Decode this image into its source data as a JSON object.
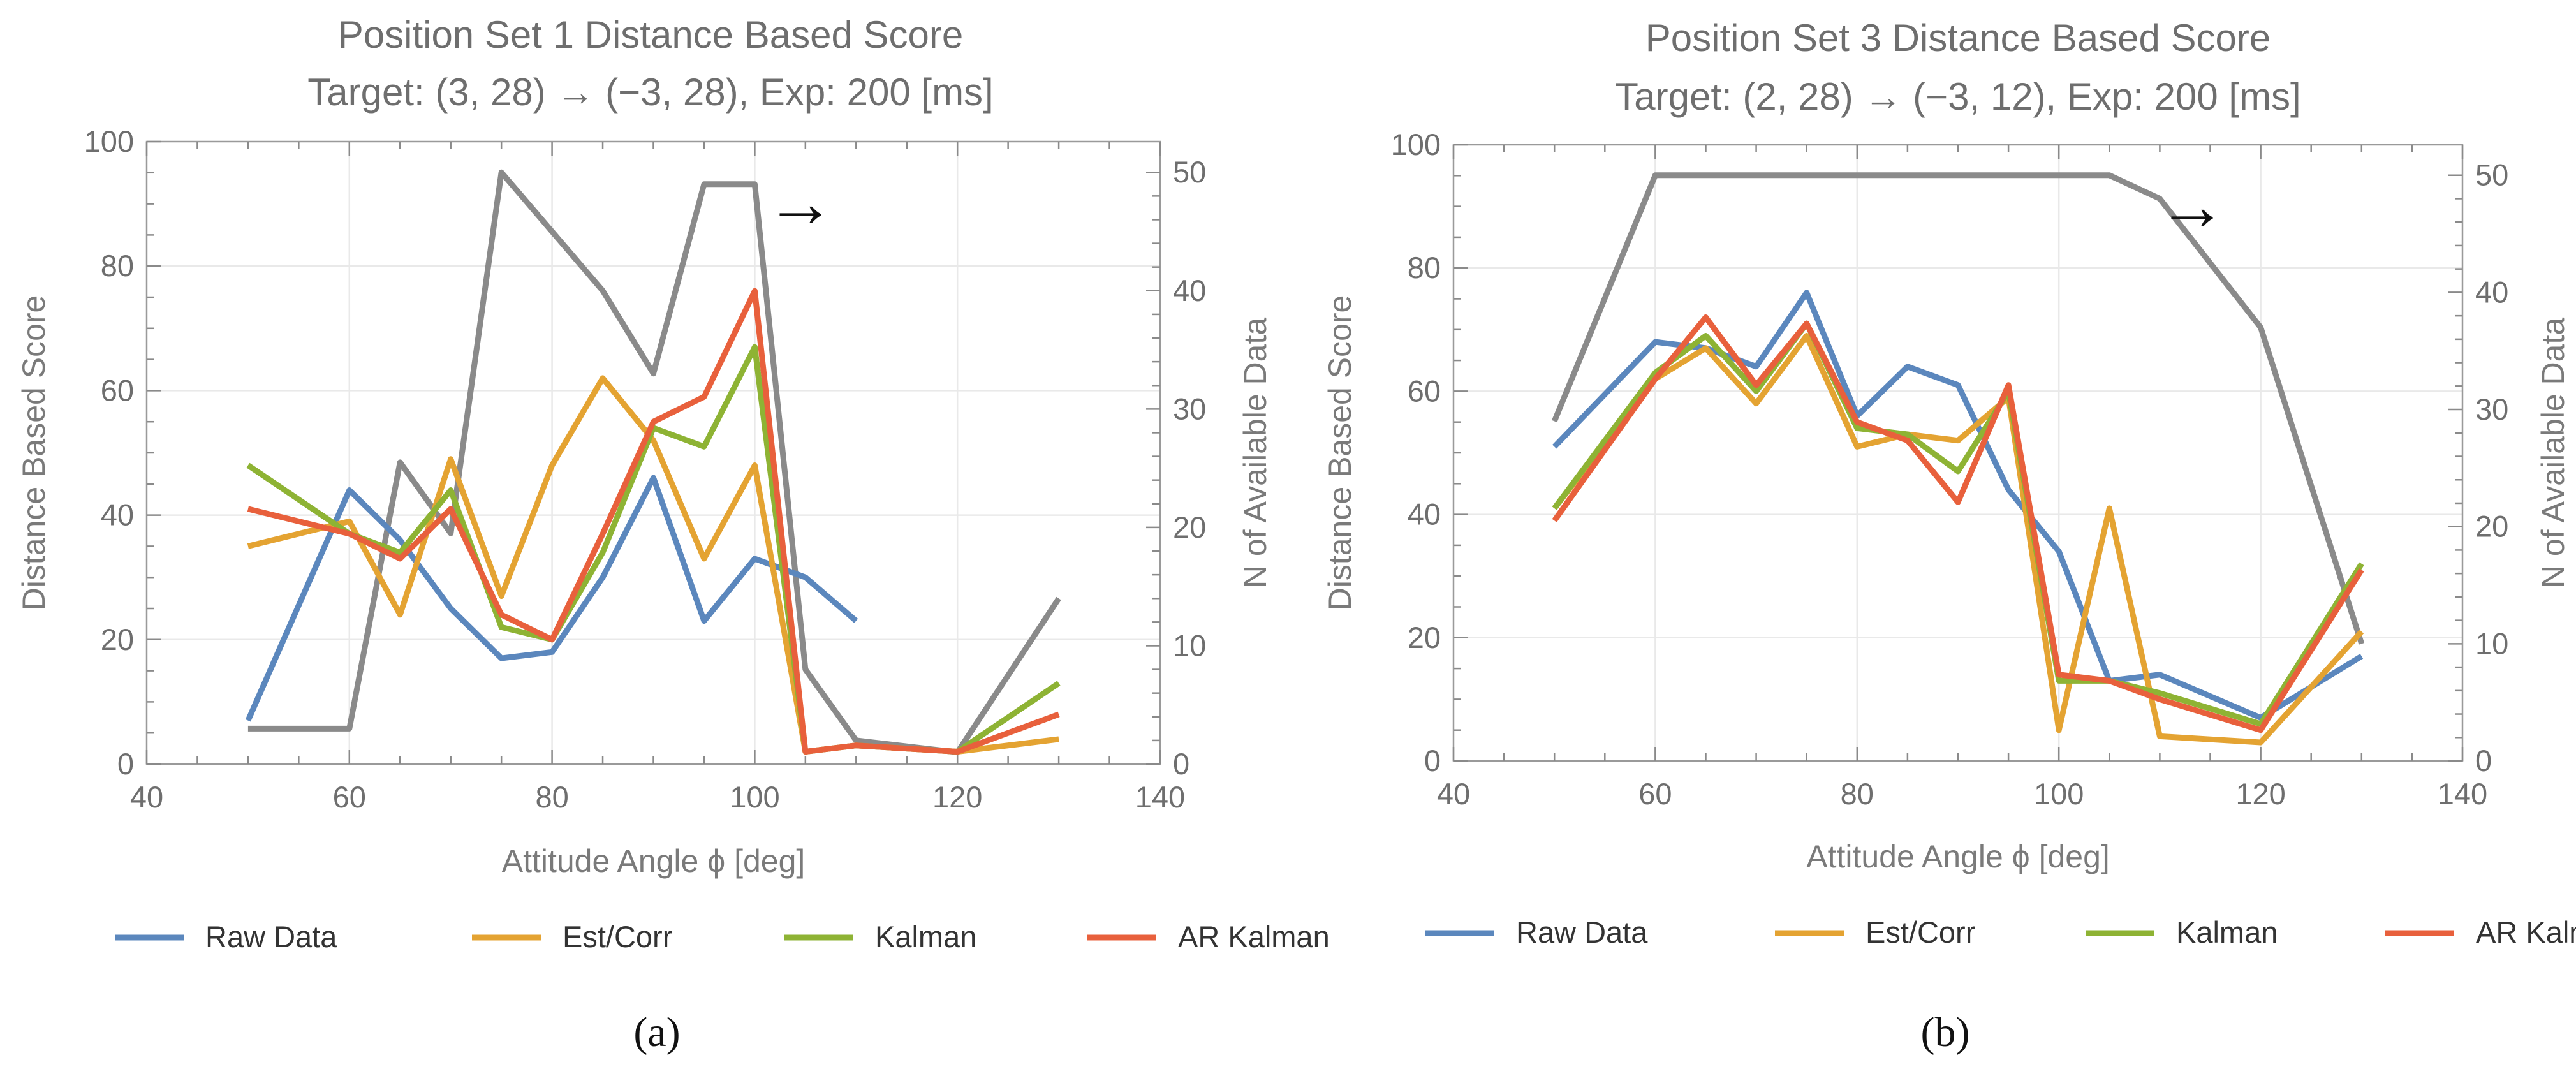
{
  "colors": {
    "raw": "#5b87bd",
    "est": "#e4a332",
    "kalman": "#8eb334",
    "ar": "#e8603c",
    "count": "#8a8a8a"
  },
  "chart_data": [
    {
      "type": "line",
      "panel": "(a)",
      "title": "Position Set 1 Distance Based Score",
      "subtitle": "Target: (3, 28) → (−3, 28), Exp: 200 [ms]",
      "xlabel": "Attitude Angle ϕ [deg]",
      "ylabel": "Distance Based Score",
      "y2label": "N of Available Data",
      "arrow": "→",
      "xlim": [
        40,
        140
      ],
      "ylim": [
        0,
        100
      ],
      "y2lim": [
        0,
        52.6
      ],
      "xticks": [
        "40",
        "60",
        "80",
        "100",
        "120",
        "140"
      ],
      "yticks": [
        "0",
        "20",
        "40",
        "60",
        "80",
        "100"
      ],
      "y2ticks": [
        "0",
        "10",
        "20",
        "30",
        "40",
        "50"
      ],
      "series": [
        {
          "name": "Raw Data",
          "color_key": "raw",
          "x": [
            50,
            60,
            65,
            70,
            75,
            80,
            85,
            90,
            95,
            100,
            105,
            110
          ],
          "values": [
            7,
            44,
            36,
            25,
            17,
            18,
            30,
            46,
            23,
            33,
            30,
            23
          ]
        },
        {
          "name": "Est/Corr",
          "color_key": "est",
          "x": [
            50,
            60,
            65,
            70,
            75,
            80,
            85,
            90,
            95,
            100,
            105,
            110,
            120,
            130
          ],
          "values": [
            35,
            39,
            24,
            49,
            27,
            48,
            62,
            52,
            33,
            48,
            2,
            3,
            2,
            4
          ]
        },
        {
          "name": "Kalman",
          "color_key": "kalman",
          "x": [
            50,
            60,
            65,
            70,
            75,
            80,
            85,
            90,
            95,
            100,
            105,
            110,
            120,
            130
          ],
          "values": [
            48,
            37,
            34,
            44,
            22,
            20,
            34,
            54,
            51,
            67,
            2,
            3,
            2,
            13
          ]
        },
        {
          "name": "AR Kalman",
          "color_key": "ar",
          "x": [
            50,
            60,
            65,
            70,
            75,
            80,
            85,
            90,
            95,
            100,
            105,
            110,
            120,
            130
          ],
          "values": [
            41,
            37,
            33,
            41,
            24,
            20,
            37,
            55,
            59,
            76,
            2,
            3,
            2,
            8
          ]
        }
      ],
      "count_series": {
        "name": "N of Available Data",
        "color_key": "count",
        "x": [
          50,
          60,
          65,
          70,
          75,
          80,
          85,
          90,
          95,
          100,
          105,
          110,
          120,
          130
        ],
        "values": [
          3,
          3,
          25.5,
          19.5,
          50,
          45,
          40,
          33,
          49,
          49,
          8,
          2,
          1,
          14
        ]
      }
    },
    {
      "type": "line",
      "panel": "(b)",
      "title": "Position Set 3 Distance Based Score",
      "subtitle": "Target: (2, 28) → (−3, 12), Exp: 200 [ms]",
      "xlabel": "Attitude Angle ϕ [deg]",
      "ylabel": "Distance Based Score",
      "y2label": "N of Available Data",
      "arrow": "→",
      "xlim": [
        40,
        140
      ],
      "ylim": [
        0,
        100
      ],
      "y2lim": [
        0,
        52.6
      ],
      "xticks": [
        "40",
        "60",
        "80",
        "100",
        "120",
        "140"
      ],
      "yticks": [
        "0",
        "20",
        "40",
        "60",
        "80",
        "100"
      ],
      "y2ticks": [
        "0",
        "10",
        "20",
        "30",
        "40",
        "50"
      ],
      "series": [
        {
          "name": "Raw Data",
          "color_key": "raw",
          "x": [
            50,
            60,
            65,
            70,
            75,
            80,
            85,
            90,
            95,
            100,
            105,
            110,
            120,
            130
          ],
          "values": [
            51,
            68,
            67,
            64,
            76,
            56,
            64,
            61,
            44,
            34,
            13,
            14,
            7,
            17
          ]
        },
        {
          "name": "Est/Corr",
          "color_key": "est",
          "x": [
            50,
            60,
            65,
            70,
            75,
            80,
            85,
            90,
            95,
            100,
            105,
            110,
            120,
            130
          ],
          "values": [
            41,
            62,
            67,
            58,
            69,
            51,
            53,
            52,
            59,
            5,
            41,
            4,
            3,
            21
          ]
        },
        {
          "name": "Kalman",
          "color_key": "kalman",
          "x": [
            50,
            60,
            65,
            70,
            75,
            80,
            85,
            90,
            95,
            100,
            105,
            110,
            120,
            130
          ],
          "values": [
            41,
            63,
            69,
            60,
            71,
            54,
            53,
            47,
            60,
            13,
            13,
            11,
            6,
            32
          ]
        },
        {
          "name": "AR Kalman",
          "color_key": "ar",
          "x": [
            50,
            60,
            65,
            70,
            75,
            80,
            85,
            90,
            95,
            100,
            105,
            110,
            120,
            130
          ],
          "values": [
            39,
            62,
            72,
            61,
            71,
            55,
            52,
            42,
            61,
            14,
            13,
            10,
            5,
            31
          ]
        }
      ],
      "count_series": {
        "name": "N of Available Data",
        "color_key": "count",
        "x": [
          50,
          60,
          65,
          70,
          75,
          80,
          85,
          90,
          95,
          100,
          105,
          110,
          120,
          130
        ],
        "values": [
          29,
          50,
          50,
          50,
          50,
          50,
          50,
          50,
          50,
          50,
          50,
          48,
          37,
          10
        ]
      }
    }
  ]
}
